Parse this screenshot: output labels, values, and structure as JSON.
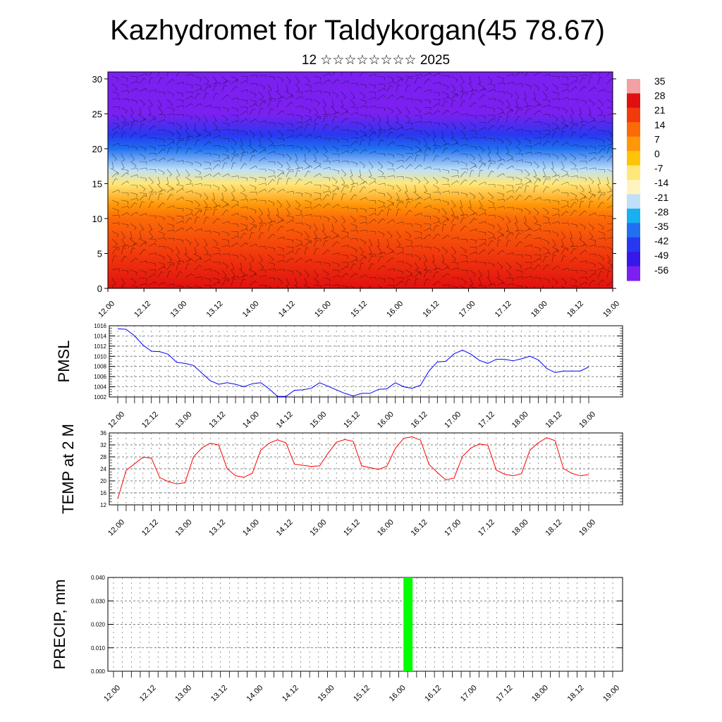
{
  "title": "Kazhydromet for Taldykorgan(45 78.67)",
  "subtitle": "12 ☆☆☆☆☆☆☆☆ 2025",
  "time_labels": [
    "12.00",
    "12.12",
    "13.00",
    "13.12",
    "14.00",
    "14.12",
    "15.00",
    "15.12",
    "16.00",
    "16.12",
    "17.00",
    "17.12",
    "18.00",
    "18.12",
    "19.00"
  ],
  "chart_data": [
    {
      "type": "heatmap",
      "title": "",
      "x_categories": [
        "12.00",
        "12.12",
        "13.00",
        "13.12",
        "14.00",
        "14.12",
        "15.00",
        "15.12",
        "16.00",
        "16.12",
        "17.00",
        "17.12",
        "18.00",
        "18.12",
        "19.00"
      ],
      "ylim": [
        0,
        31
      ],
      "y_ticks": [
        0,
        5,
        10,
        15,
        20,
        25,
        30
      ],
      "temperature_profile": {
        "levels": [
          0,
          5,
          10,
          12,
          15,
          17,
          20,
          22,
          25,
          28,
          31
        ],
        "values": [
          30,
          24,
          14,
          4,
          -10,
          -18,
          -33,
          -40,
          -55,
          -58,
          -56
        ]
      },
      "colorbar": {
        "labels": [
          "35",
          "28",
          "21",
          "14",
          "7",
          "0",
          "-7",
          "-14",
          "-21",
          "-28",
          "-35",
          "-42",
          "-49",
          "-56"
        ],
        "colors": [
          "#f2a0a0",
          "#e01010",
          "#f23a0c",
          "#fb6a08",
          "#ff9808",
          "#ffc408",
          "#ffe87a",
          "#fff4c0",
          "#bfe0f8",
          "#18b0f0",
          "#2070f0",
          "#2838f0",
          "#3818e8",
          "#7b20f0"
        ]
      },
      "overlay": "wind barbs"
    },
    {
      "type": "line",
      "ylabel": "PMSL",
      "ylim": [
        1002,
        1016
      ],
      "y_ticks": [
        1002,
        1004,
        1006,
        1008,
        1010,
        1012,
        1014,
        1016
      ],
      "grid": true,
      "color": "#0000ff",
      "values": [
        1015.4,
        1015.3,
        1014.0,
        1012.2,
        1011.0,
        1010.9,
        1010.4,
        1008.8,
        1008.6,
        1008.2,
        1006.7,
        1005.2,
        1004.5,
        1004.8,
        1004.5,
        1004.0,
        1004.6,
        1004.8,
        1003.6,
        1002.1,
        1002.1,
        1003.3,
        1003.4,
        1003.7,
        1004.8,
        1004.1,
        1003.4,
        1002.7,
        1002.2,
        1002.7,
        1002.7,
        1003.5,
        1003.6,
        1004.8,
        1004.0,
        1003.7,
        1004.3,
        1007.1,
        1008.9,
        1009.0,
        1010.5,
        1011.2,
        1010.4,
        1009.2,
        1008.6,
        1009.4,
        1009.4,
        1009.1,
        1009.5,
        1010.0,
        1009.3,
        1007.6,
        1006.8,
        1007.1,
        1007.1,
        1007.1,
        1007.9
      ]
    },
    {
      "type": "line",
      "ylabel": "TEMP at 2 M",
      "ylim": [
        12,
        36
      ],
      "y_ticks": [
        12,
        16,
        20,
        24,
        28,
        32,
        36
      ],
      "grid": true,
      "color": "#ff0000",
      "values": [
        14.0,
        23.5,
        25.7,
        27.9,
        27.6,
        21.1,
        19.8,
        19.0,
        19.4,
        28.0,
        31.0,
        32.6,
        32.0,
        24.1,
        21.7,
        21.2,
        22.6,
        30.2,
        32.6,
        33.7,
        32.7,
        25.6,
        25.2,
        24.8,
        25.0,
        29.2,
        32.9,
        33.8,
        33.2,
        25.0,
        24.4,
        23.8,
        24.9,
        30.8,
        34.2,
        34.7,
        33.6,
        25.5,
        22.8,
        20.3,
        21.0,
        28.2,
        31.0,
        32.3,
        31.9,
        23.6,
        22.2,
        21.7,
        22.4,
        30.2,
        32.7,
        34.4,
        33.4,
        24.1,
        22.5,
        21.7,
        22.1
      ]
    },
    {
      "type": "bar",
      "ylabel": "PRECIP, mm",
      "ylim": [
        0,
        0.04
      ],
      "y_ticks": [
        "0.000",
        "0.010",
        "0.020",
        "0.030",
        "0.040"
      ],
      "grid": true,
      "color": "#00ff00",
      "bars": [
        {
          "x": "16.03",
          "value": 0.04
        }
      ]
    }
  ]
}
